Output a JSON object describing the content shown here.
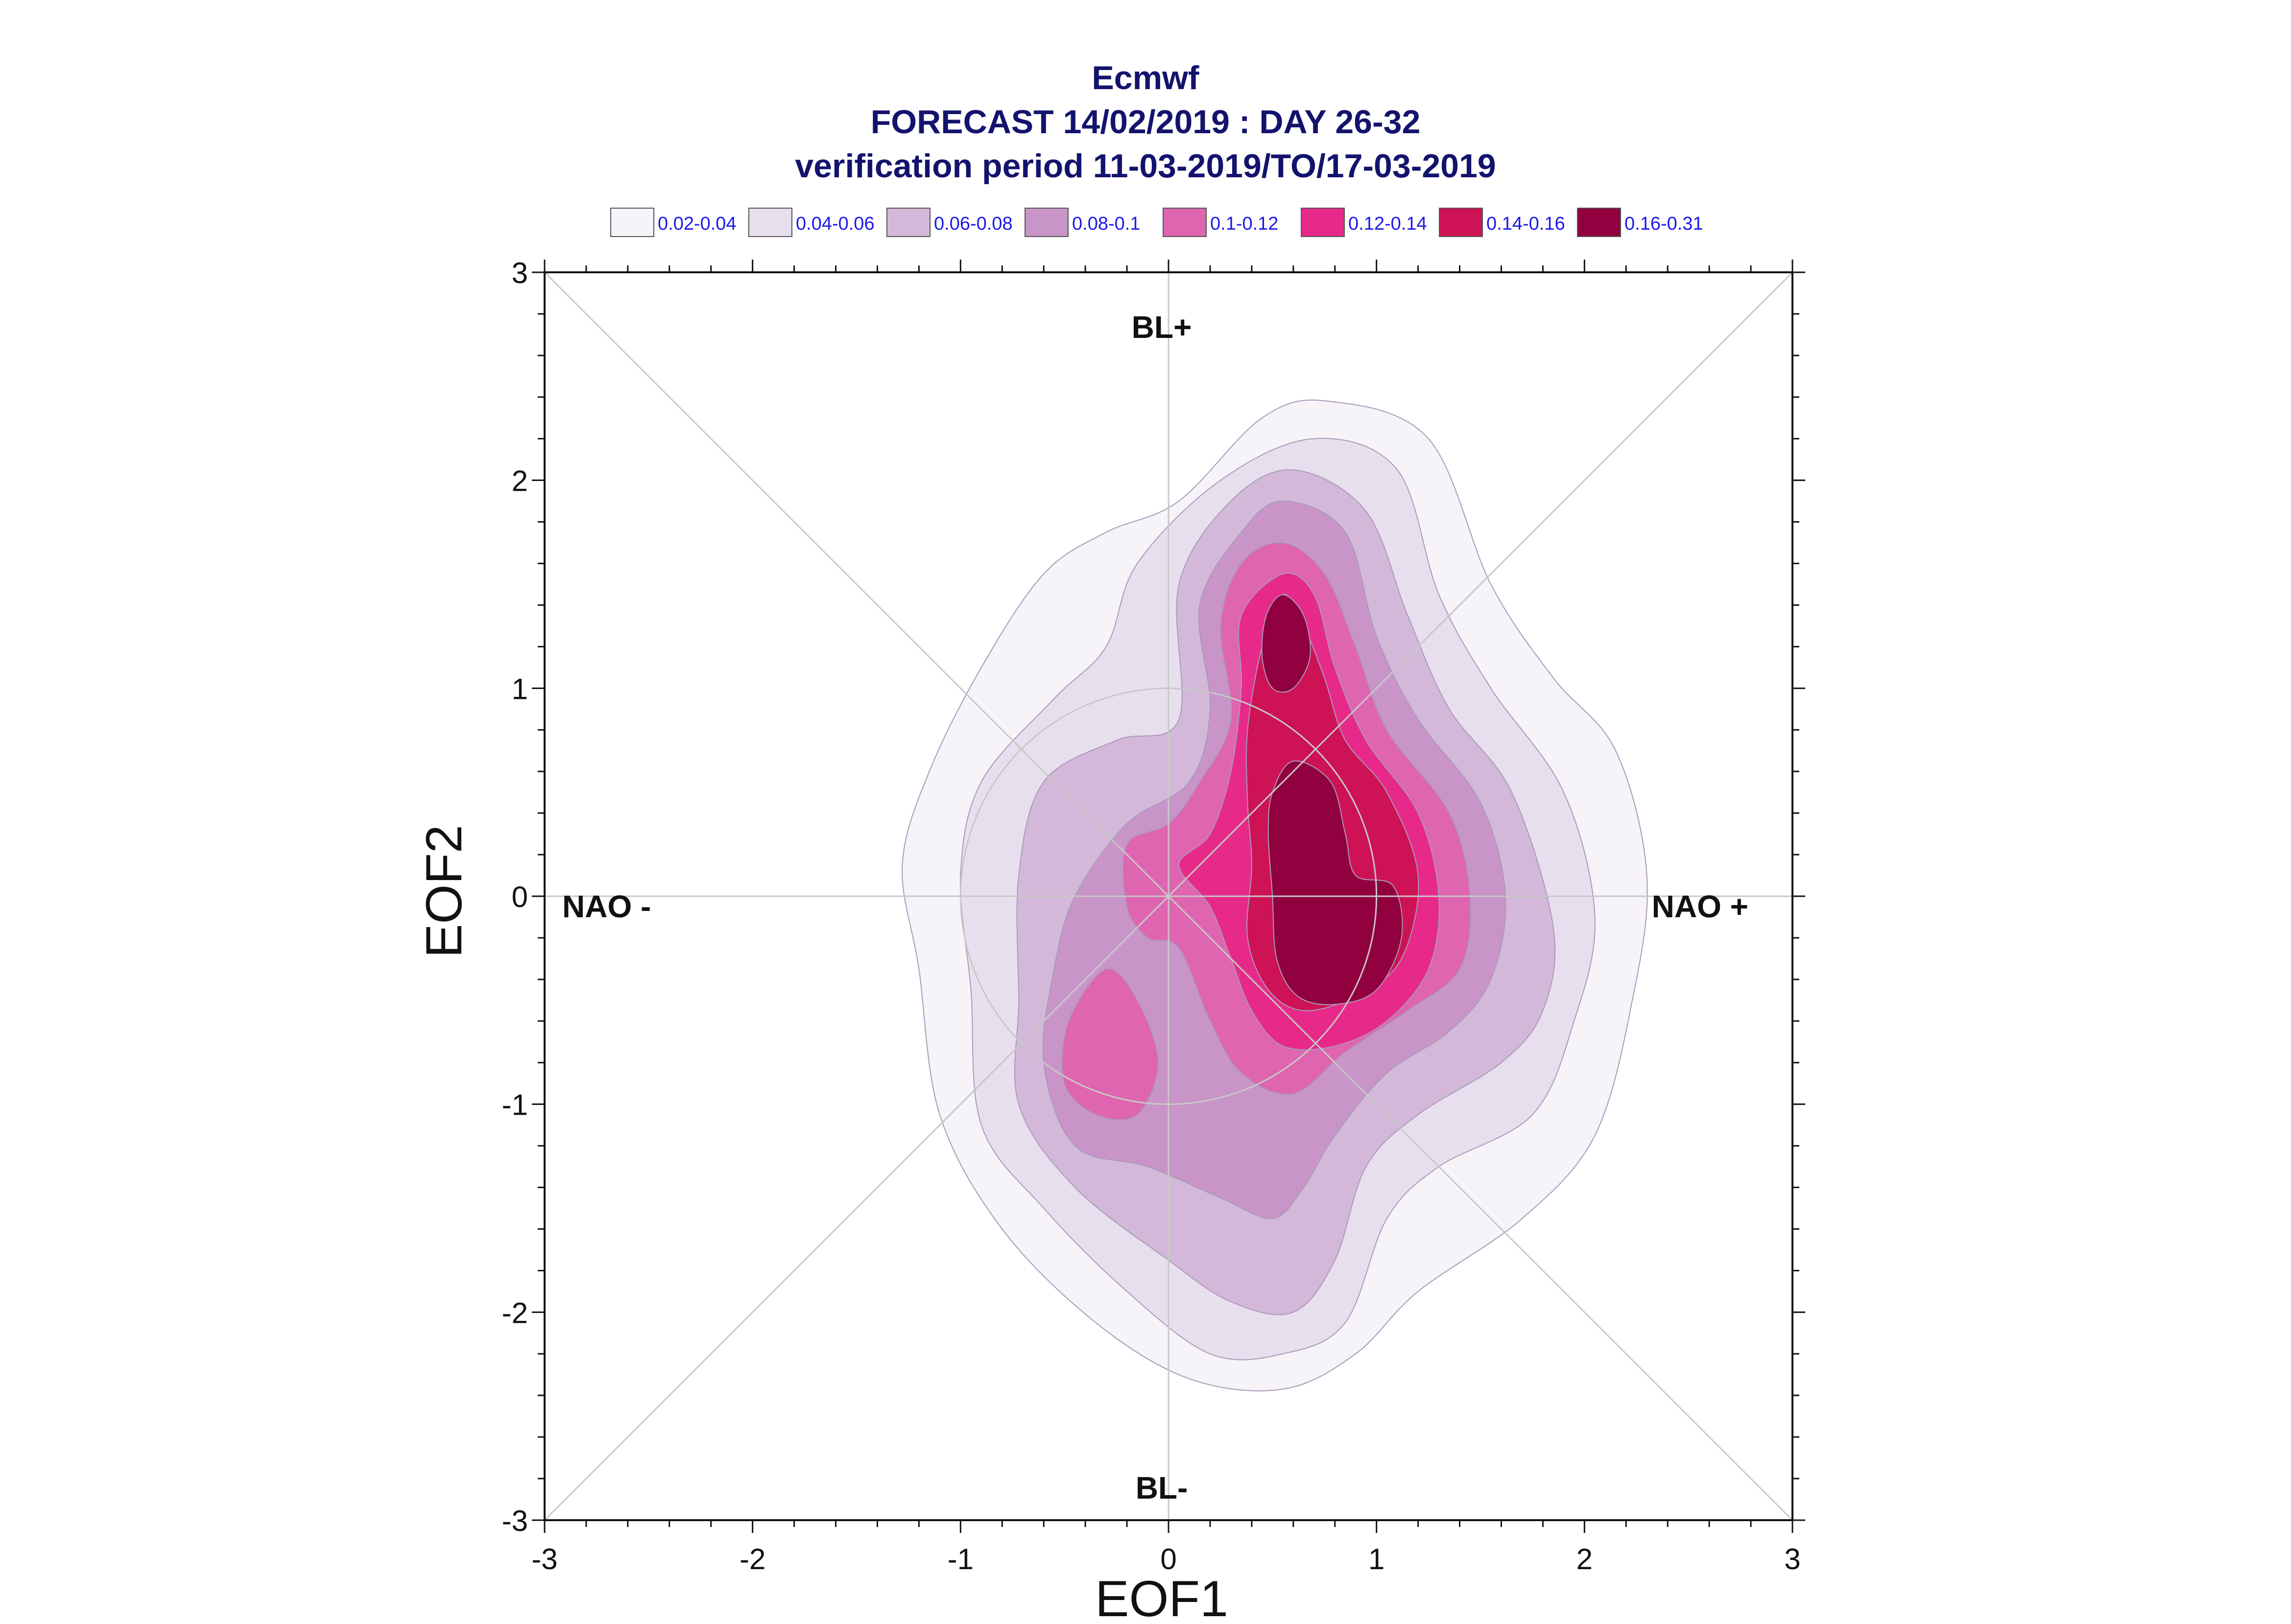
{
  "chart_data": {
    "type": "heatmap",
    "title_lines": [
      "Ecmwf",
      "FORECAST 14/02/2019 : DAY 26-32",
      "verification period 11-03-2019/TO/17-03-2019"
    ],
    "xlabel": "EOF1",
    "ylabel": "EOF2",
    "xlim": [
      -3,
      3
    ],
    "ylim": [
      -3,
      3
    ],
    "xticks": [
      "-3",
      "-2",
      "-1",
      "0",
      "1",
      "2",
      "3"
    ],
    "yticks": [
      "-3",
      "-2",
      "-1",
      "0",
      "1",
      "2",
      "3"
    ],
    "regime_labels": {
      "top": "BL+",
      "bottom": "BL-",
      "left": "NAO -",
      "right": "NAO +"
    },
    "legend_position": "top",
    "legend": [
      {
        "label": "0.02-0.04",
        "color": "#f6f3f9"
      },
      {
        "label": "0.04-0.06",
        "color": "#e8dfee"
      },
      {
        "label": "0.06-0.08",
        "color": "#d4b8d9"
      },
      {
        "label": "0.08-0.1",
        "color": "#c994c8"
      },
      {
        "label": "0.1-0.12",
        "color": "#df65b0"
      },
      {
        "label": "0.12-0.14",
        "color": "#e7298a"
      },
      {
        "label": "0.14-0.16",
        "color": "#ce1256"
      },
      {
        "label": "0.16-0.31",
        "color": "#91003f"
      }
    ],
    "contours": [
      {
        "level": "0.02-0.04",
        "color": "#f6f3f9",
        "points": [
          [
            0.77,
            2.38
          ],
          [
            1.25,
            2.2
          ],
          [
            1.55,
            1.5
          ],
          [
            1.85,
            1.05
          ],
          [
            2.15,
            0.7
          ],
          [
            2.3,
            0.1
          ],
          [
            2.23,
            -0.5
          ],
          [
            2.05,
            -1.15
          ],
          [
            1.7,
            -1.55
          ],
          [
            1.2,
            -1.9
          ],
          [
            0.9,
            -2.2
          ],
          [
            0.55,
            -2.37
          ],
          [
            0.1,
            -2.32
          ],
          [
            -0.35,
            -2.05
          ],
          [
            -0.8,
            -1.6
          ],
          [
            -1.1,
            -1.05
          ],
          [
            -1.2,
            -0.35
          ],
          [
            -1.28,
            0.15
          ],
          [
            -1.15,
            0.6
          ],
          [
            -0.9,
            1.1
          ],
          [
            -0.6,
            1.55
          ],
          [
            -0.3,
            1.75
          ],
          [
            0.05,
            1.9
          ],
          [
            0.45,
            2.3
          ]
        ]
      },
      {
        "level": "0.04-0.06",
        "color": "#e8dfee",
        "points": [
          [
            0.7,
            2.2
          ],
          [
            1.1,
            2.05
          ],
          [
            1.3,
            1.45
          ],
          [
            1.55,
            1.0
          ],
          [
            1.9,
            0.5
          ],
          [
            2.05,
            -0.1
          ],
          [
            1.95,
            -0.6
          ],
          [
            1.75,
            -1.05
          ],
          [
            1.3,
            -1.3
          ],
          [
            1.05,
            -1.55
          ],
          [
            0.85,
            -2.05
          ],
          [
            0.55,
            -2.2
          ],
          [
            0.2,
            -2.2
          ],
          [
            -0.2,
            -1.9
          ],
          [
            -0.6,
            -1.5
          ],
          [
            -0.9,
            -1.1
          ],
          [
            -0.95,
            -0.45
          ],
          [
            -1.0,
            0.1
          ],
          [
            -0.9,
            0.55
          ],
          [
            -0.55,
            0.95
          ],
          [
            -0.3,
            1.2
          ],
          [
            -0.15,
            1.6
          ],
          [
            0.25,
            2.0
          ]
        ]
      },
      {
        "level": "0.06-0.08",
        "color": "#d4b8d9",
        "points": [
          [
            0.6,
            2.05
          ],
          [
            0.95,
            1.85
          ],
          [
            1.15,
            1.35
          ],
          [
            1.35,
            0.9
          ],
          [
            1.65,
            0.5
          ],
          [
            1.85,
            -0.15
          ],
          [
            1.8,
            -0.55
          ],
          [
            1.6,
            -0.8
          ],
          [
            1.2,
            -1.05
          ],
          [
            0.95,
            -1.3
          ],
          [
            0.8,
            -1.75
          ],
          [
            0.6,
            -2.0
          ],
          [
            0.3,
            -1.95
          ],
          [
            0.0,
            -1.75
          ],
          [
            -0.45,
            -1.4
          ],
          [
            -0.72,
            -1.0
          ],
          [
            -0.72,
            -0.5
          ],
          [
            -0.72,
            0.1
          ],
          [
            -0.6,
            0.55
          ],
          [
            -0.25,
            0.75
          ],
          [
            0.05,
            0.85
          ],
          [
            0.05,
            1.5
          ],
          [
            0.3,
            1.9
          ]
        ]
      },
      {
        "level": "0.08-0.1",
        "color": "#c994c8",
        "points": [
          [
            0.55,
            1.9
          ],
          [
            0.85,
            1.75
          ],
          [
            1.0,
            1.25
          ],
          [
            1.2,
            0.85
          ],
          [
            1.5,
            0.45
          ],
          [
            1.62,
            0.0
          ],
          [
            1.55,
            -0.4
          ],
          [
            1.35,
            -0.65
          ],
          [
            1.05,
            -0.85
          ],
          [
            0.8,
            -1.15
          ],
          [
            0.65,
            -1.4
          ],
          [
            0.5,
            -1.55
          ],
          [
            0.25,
            -1.45
          ],
          [
            -0.1,
            -1.3
          ],
          [
            -0.45,
            -1.2
          ],
          [
            -0.6,
            -0.8
          ],
          [
            -0.55,
            -0.35
          ],
          [
            -0.45,
            0.0
          ],
          [
            -0.2,
            0.35
          ],
          [
            0.1,
            0.55
          ],
          [
            0.2,
            0.9
          ],
          [
            0.15,
            1.4
          ],
          [
            0.35,
            1.75
          ]
        ]
      },
      {
        "level": "0.1-0.12",
        "color": "#df65b0",
        "points": [
          [
            0.55,
            1.7
          ],
          [
            0.75,
            1.55
          ],
          [
            0.9,
            1.2
          ],
          [
            1.05,
            0.8
          ],
          [
            1.35,
            0.4
          ],
          [
            1.45,
            0.0
          ],
          [
            1.4,
            -0.35
          ],
          [
            1.15,
            -0.55
          ],
          [
            0.85,
            -0.75
          ],
          [
            0.6,
            -0.95
          ],
          [
            0.35,
            -0.85
          ],
          [
            0.2,
            -0.6
          ],
          [
            0.05,
            -0.25
          ],
          [
            -0.1,
            -0.2
          ],
          [
            -0.2,
            -0.05
          ],
          [
            -0.2,
            0.25
          ],
          [
            0.0,
            0.35
          ],
          [
            0.15,
            0.55
          ],
          [
            0.3,
            0.85
          ],
          [
            0.25,
            1.3
          ],
          [
            0.35,
            1.6
          ]
        ]
      },
      {
        "level": "0.1-0.12",
        "color": "#df65b0",
        "points": [
          [
            -0.3,
            -0.35
          ],
          [
            -0.15,
            -0.5
          ],
          [
            -0.05,
            -0.8
          ],
          [
            -0.15,
            -1.05
          ],
          [
            -0.35,
            -1.05
          ],
          [
            -0.5,
            -0.9
          ],
          [
            -0.48,
            -0.6
          ]
        ]
      },
      {
        "level": "0.12-0.14",
        "color": "#e7298a",
        "points": [
          [
            0.55,
            1.55
          ],
          [
            0.7,
            1.45
          ],
          [
            0.8,
            1.1
          ],
          [
            0.95,
            0.75
          ],
          [
            1.2,
            0.4
          ],
          [
            1.3,
            0.0
          ],
          [
            1.25,
            -0.35
          ],
          [
            1.05,
            -0.6
          ],
          [
            0.8,
            -0.72
          ],
          [
            0.55,
            -0.72
          ],
          [
            0.4,
            -0.55
          ],
          [
            0.3,
            -0.3
          ],
          [
            0.2,
            -0.05
          ],
          [
            0.05,
            0.15
          ],
          [
            0.2,
            0.3
          ],
          [
            0.3,
            0.6
          ],
          [
            0.35,
            1.0
          ],
          [
            0.35,
            1.35
          ]
        ]
      },
      {
        "level": "0.14-0.16",
        "color": "#ce1256",
        "points": [
          [
            0.55,
            1.45
          ],
          [
            0.65,
            1.3
          ],
          [
            0.75,
            1.05
          ],
          [
            0.85,
            0.75
          ],
          [
            1.05,
            0.5
          ],
          [
            1.2,
            0.1
          ],
          [
            1.12,
            -0.3
          ],
          [
            0.9,
            -0.48
          ],
          [
            0.65,
            -0.55
          ],
          [
            0.48,
            -0.45
          ],
          [
            0.38,
            -0.2
          ],
          [
            0.4,
            0.15
          ],
          [
            0.38,
            0.45
          ],
          [
            0.38,
            0.8
          ],
          [
            0.45,
            1.2
          ]
        ]
      },
      {
        "level": "0.16-0.31",
        "color": "#91003f",
        "points": [
          [
            0.55,
            1.45
          ],
          [
            0.65,
            1.35
          ],
          [
            0.68,
            1.15
          ],
          [
            0.6,
            1.0
          ],
          [
            0.5,
            1.0
          ],
          [
            0.45,
            1.15
          ],
          [
            0.47,
            1.35
          ]
        ]
      },
      {
        "level": "0.16-0.31",
        "color": "#91003f",
        "points": [
          [
            0.6,
            0.65
          ],
          [
            0.78,
            0.55
          ],
          [
            0.85,
            0.3
          ],
          [
            0.9,
            0.1
          ],
          [
            1.08,
            0.05
          ],
          [
            1.12,
            -0.2
          ],
          [
            1.0,
            -0.45
          ],
          [
            0.8,
            -0.52
          ],
          [
            0.62,
            -0.48
          ],
          [
            0.52,
            -0.3
          ],
          [
            0.5,
            0.0
          ],
          [
            0.48,
            0.3
          ],
          [
            0.5,
            0.5
          ]
        ]
      }
    ]
  }
}
